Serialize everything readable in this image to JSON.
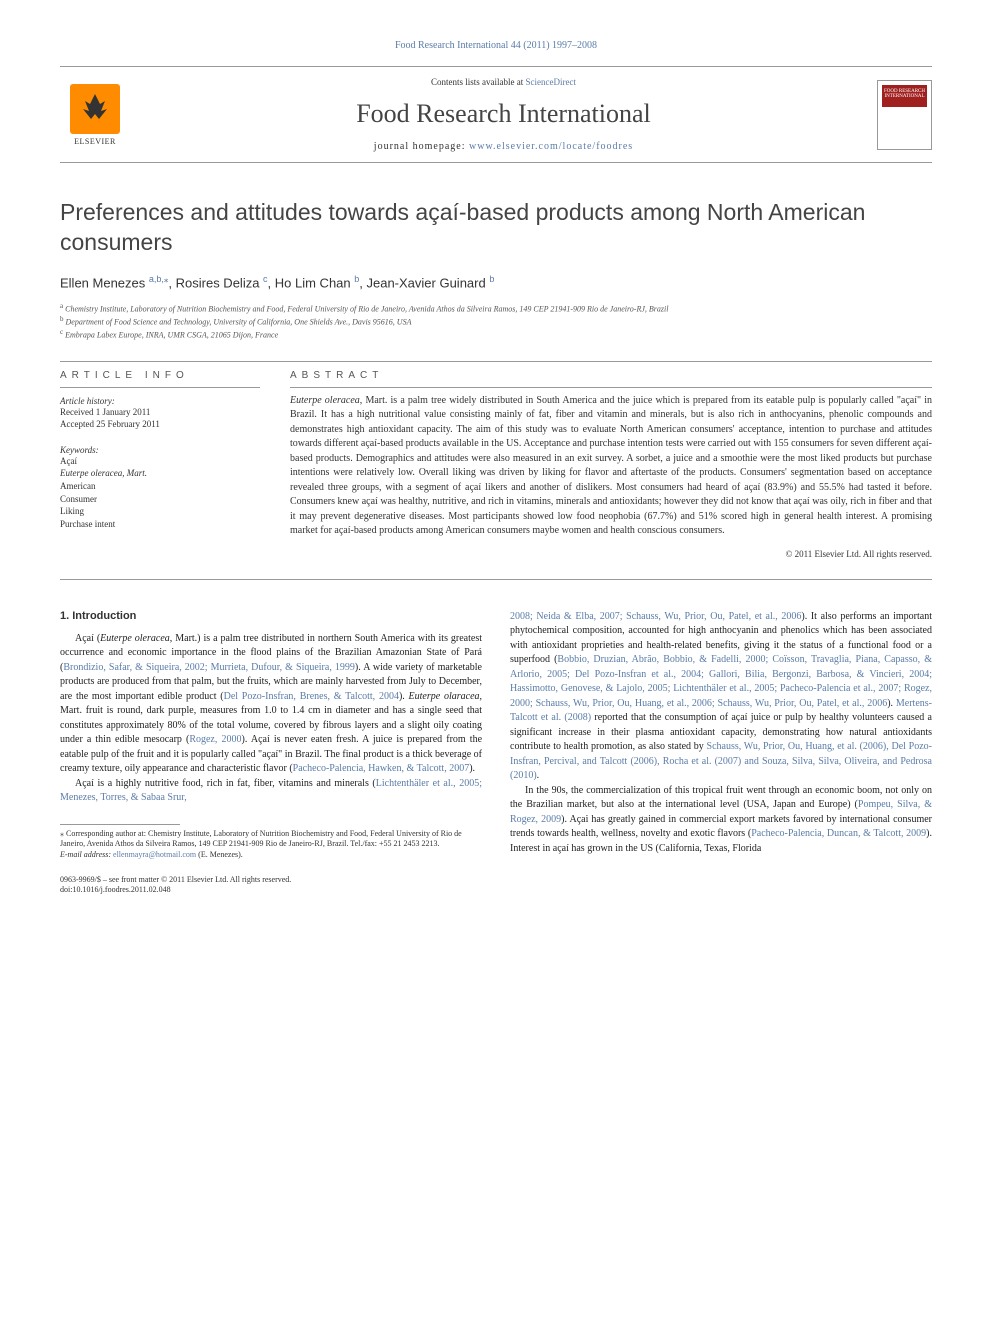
{
  "journal_ref": "Food Research International 44 (2011) 1997–2008",
  "header": {
    "contents_prefix": "Contents lists available at ",
    "contents_link": "ScienceDirect",
    "journal_name": "Food Research International",
    "homepage_prefix": "journal homepage: ",
    "homepage_link": "www.elsevier.com/locate/foodres",
    "elsevier": "ELSEVIER",
    "cover_label": "FOOD RESEARCH INTERNATIONAL"
  },
  "title": "Preferences and attitudes towards açaí-based products among North American consumers",
  "authors_html": "Ellen Menezes <span class='sup'>a,b,</span><span class='sup'>⁎</span>, Rosires Deliza <span class='sup'>c</span>, Ho Lim Chan <span class='sup'>b</span>, Jean-Xavier Guinard <span class='sup'>b</span>",
  "affiliations": [
    {
      "sup": "a",
      "text": "Chemistry Institute, Laboratory of Nutrition Biochemistry and Food, Federal University of Rio de Janeiro, Avenida Athos da Silveira Ramos, 149 CEP 21941-909 Rio de Janeiro-RJ, Brazil"
    },
    {
      "sup": "b",
      "text": "Department of Food Science and Technology, University of California, One Shields Ave., Davis 95616, USA"
    },
    {
      "sup": "c",
      "text": "Embrapa Labex Europe, INRA, UMR CSGA, 21065 Dijon, France"
    }
  ],
  "info": {
    "heading": "ARTICLE INFO",
    "history_heading": "Article history:",
    "received": "Received 1 January 2011",
    "accepted": "Accepted 25 February 2011",
    "keywords_heading": "Keywords:",
    "keywords": [
      "Açaí",
      "Euterpe oleracea, Mart.",
      "American",
      "Consumer",
      "Liking",
      "Purchase intent"
    ]
  },
  "abstract": {
    "heading": "ABSTRACT",
    "text_html": "<span class='italic'>Euterpe oleracea</span>, Mart. is a palm tree widely distributed in South America and the juice which is prepared from its eatable pulp is popularly called \"açaí\" in Brazil. It has a high nutritional value consisting mainly of fat, fiber and vitamin and minerals, but is also rich in anthocyanins, phenolic compounds and demonstrates high antioxidant capacity. The aim of this study was to evaluate North American consumers' acceptance, intention to purchase and attitudes towards different açaí-based products available in the US. Acceptance and purchase intention tests were carried out with 155 consumers for seven different açaí-based products. Demographics and attitudes were also measured in an exit survey. A sorbet, a juice and a smoothie were the most liked products but purchase intentions were relatively low. Overall liking was driven by liking for flavor and aftertaste of the products. Consumers' segmentation based on acceptance revealed three groups, with a segment of açaí likers and another of dislikers. Most consumers had heard of açaí (83.9%) and 55.5% had tasted it before. Consumers knew açaí was healthy, nutritive, and rich in vitamins, minerals and antioxidants; however they did not know that açaí was oily, rich in fiber and that it may prevent degenerative diseases. Most participants showed low food neophobia (67.7%) and 51% scored high in general health interest. A promising market for açaí-based products among American consumers maybe women and health conscious consumers.",
    "copyright": "© 2011 Elsevier Ltd. All rights reserved."
  },
  "body": {
    "section_heading": "1. Introduction",
    "col1_html": "<p>Açaí (<span class='italic'>Euterpe oleracea</span>, Mart.) is a palm tree distributed in northern South America with its greatest occurrence and economic importance in the flood plains of the Brazilian Amazonian State of Pará (<span class='link'>Brondizio, Safar, & Siqueira, 2002; Murrieta, Dufour, & Siqueira, 1999</span>). A wide variety of marketable products are produced from that palm, but the fruits, which are mainly harvested from July to December, are the most important edible product (<span class='link'>Del Pozo-Insfran, Brenes, & Talcott, 2004</span>). <span class='italic'>Euterpe olaracea</span>, Mart. fruit is round, dark purple, measures from 1.0 to 1.4 cm in diameter and has a single seed that constitutes approximately 80% of the total volume, covered by fibrous layers and a slight oily coating under a thin edible mesocarp (<span class='link'>Rogez, 2000</span>). Açaí is never eaten fresh. A juice is prepared from the eatable pulp of the fruit and it is popularly called \"açaí\" in Brazil. The final product is a thick beverage of creamy texture, oily appearance and characteristic flavor (<span class='link'>Pacheco-Palencia, Hawken, & Talcott, 2007</span>).</p><p>Açaí is a highly nutritive food, rich in fat, fiber, vitamins and minerals (<span class='link'>Lichtenthäler et al., 2005; Menezes, Torres, & Sabaa Srur,</span></p>",
    "col2_html": "<p style='text-indent:0'><span class='link'>2008; Neida & Elba, 2007; Schauss, Wu, Prior, Ou, Patel, et al., 2006</span>). It also performs an important phytochemical composition, accounted for high anthocyanin and phenolics which has been associated with antioxidant proprieties and health-related benefits, giving it the status of a functional food or a superfood (<span class='link'>Bobbio, Druzian, Abrão, Bobbio, & Fadelli, 2000; Coïsson, Travaglia, Piana, Capasso, & Arlorio, 2005; Del Pozo-Insfran et al., 2004; Gallori, Bilia, Bergonzi, Barbosa, & Vincieri, 2004; Hassimotto, Genovese, & Lajolo, 2005; Lichtenthäler et al., 2005; Pacheco-Palencia et al., 2007; Rogez, 2000; Schauss, Wu, Prior, Ou, Huang, et al., 2006; Schauss, Wu, Prior, Ou, Patel, et al., 2006</span>). <span class='link'>Mertens-Talcott et al. (2008)</span> reported that the consumption of açaí juice or pulp by healthy volunteers caused a significant increase in their plasma antioxidant capacity, demonstrating how natural antioxidants contribute to health promotion, as also stated by <span class='link'>Schauss, Wu, Prior, Ou, Huang, et al. (2006), Del Pozo-Insfran, Percival, and Talcott (2006), Rocha et al. (2007) and Souza, Silva, Silva, Oliveira, and Pedrosa (2010)</span>.</p><p>In the 90s, the commercialization of this tropical fruit went through an economic boom, not only on the Brazilian market, but also at the international level (USA, Japan and Europe) (<span class='link'>Pompeu, Silva, & Rogez, 2009</span>). Açai has greatly gained in commercial export markets favored by international consumer trends towards health, wellness, novelty and exotic flavors (<span class='link'>Pacheco-Palencia, Duncan, & Talcott, 2009</span>). Interest in açaí has grown in the US (California, Texas, Florida</p>"
  },
  "footnote": {
    "corr_html": "⁎ Corresponding author at: Chemistry Institute, Laboratory of Nutrition Biochemistry and Food, Federal University of Rio de Janeiro, Avenida Athos da Silveira Ramos, 149 CEP 21941-909 Rio de Janeiro-RJ, Brazil. Tel./fax: +55 21 2453 2213.",
    "email_prefix": "E-mail address: ",
    "email": "ellenmayra@hotmail.com",
    "email_suffix": " (E. Menezes)."
  },
  "footer": {
    "line1": "0963-9969/$ – see front matter © 2011 Elsevier Ltd. All rights reserved.",
    "line2": "doi:10.1016/j.foodres.2011.02.048"
  },
  "colors": {
    "link": "#5a7ca8",
    "text": "#333333",
    "elsevier_orange": "#ff8c00",
    "cover_red": "#a02020"
  }
}
